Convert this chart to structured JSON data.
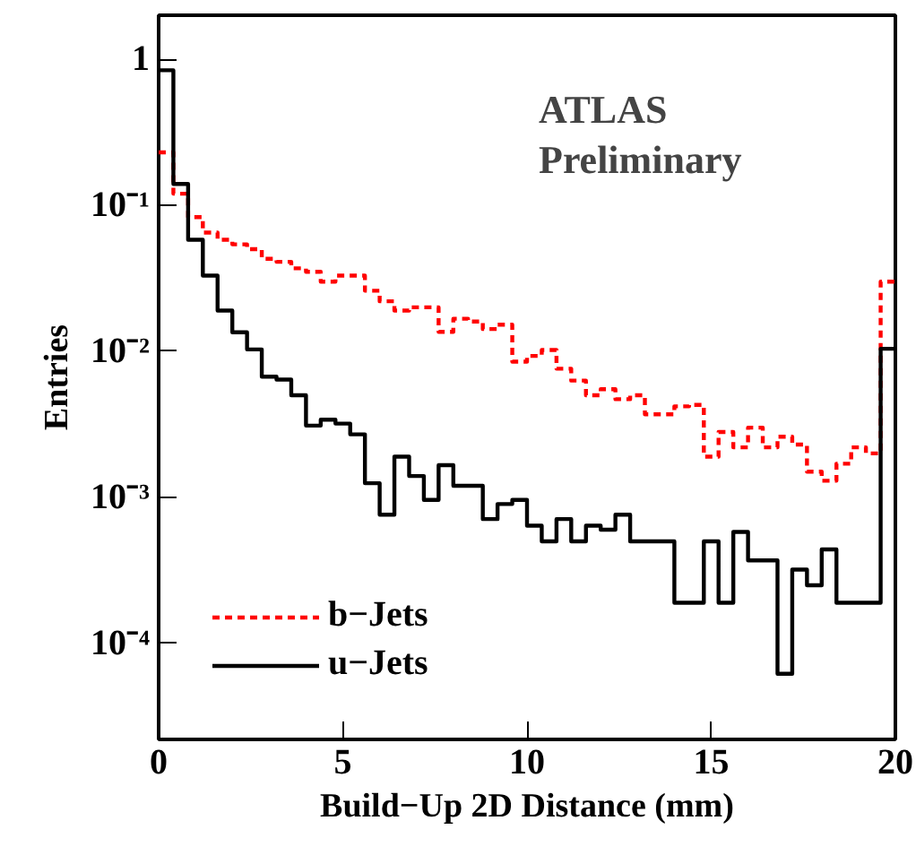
{
  "chart_data": {
    "type": "histogram",
    "xlabel": "Build−Up 2D Distance (mm)",
    "ylabel": "Entries",
    "annotations": [
      "ATLAS",
      "Preliminary"
    ],
    "bins": [
      0,
      0.4,
      0.8,
      1.2,
      1.6,
      2.0,
      2.4,
      2.8,
      3.2,
      3.6,
      4.0,
      4.4,
      4.8,
      5.2,
      5.6,
      6.0,
      6.4,
      6.8,
      7.2,
      7.6,
      8.0,
      8.4,
      8.8,
      9.2,
      9.6,
      10.0,
      10.4,
      10.8,
      11.2,
      11.6,
      12.0,
      12.4,
      12.8,
      13.2,
      13.6,
      14.0,
      14.4,
      14.8,
      15.2,
      15.6,
      16.0,
      16.4,
      16.8,
      17.2,
      17.6,
      18.0,
      18.4,
      18.8,
      19.2,
      19.6,
      20.0
    ],
    "series": [
      {
        "name": "b−Jets",
        "color": "#ff0000",
        "line_style": "dashed",
        "values": [
          0.23,
          0.12,
          0.083,
          0.065,
          0.058,
          0.054,
          0.05,
          0.043,
          0.041,
          0.037,
          0.035,
          0.03,
          0.033,
          0.033,
          0.026,
          0.022,
          0.019,
          0.02,
          0.02,
          0.0136,
          0.0167,
          0.016,
          0.0142,
          0.0152,
          0.0085,
          0.0093,
          0.0102,
          0.0076,
          0.0063,
          0.005,
          0.0055,
          0.0047,
          0.005,
          0.0037,
          0.0037,
          0.0042,
          0.0043,
          0.0019,
          0.0028,
          0.0022,
          0.003,
          0.0022,
          0.0026,
          0.0023,
          0.0015,
          0.0013,
          0.0017,
          0.0022,
          0.002,
          0.03
        ]
      },
      {
        "name": "u−Jets",
        "color": "#000000",
        "line_style": "solid",
        "values": [
          0.84,
          0.14,
          0.058,
          0.033,
          0.019,
          0.0135,
          0.0103,
          0.0067,
          0.0064,
          0.005,
          0.0031,
          0.0034,
          0.0032,
          0.0027,
          0.00125,
          0.00076,
          0.0019,
          0.0014,
          0.00096,
          0.00166,
          0.0012,
          0.0012,
          0.00071,
          0.0009,
          0.00096,
          0.00064,
          0.0005,
          0.00071,
          0.0005,
          0.00064,
          0.0006,
          0.00076,
          0.0005,
          0.0005,
          0.0005,
          0.00019,
          0.00019,
          0.0005,
          0.00019,
          0.00058,
          0.00037,
          0.00037,
          6.2e-05,
          0.00032,
          0.00025,
          0.00044,
          0.00019,
          0.00019,
          0.00019,
          0.0104
        ]
      }
    ],
    "log": "y",
    "xlim": [
      0,
      20
    ],
    "ylim": [
      2.2e-05,
      2
    ],
    "xticks": [
      0,
      5,
      10,
      15,
      20
    ],
    "yticks": [
      1,
      {
        "value": 0.1,
        "label": "10⁻¹"
      },
      {
        "value": 0.01,
        "label": "10⁻²"
      },
      {
        "value": 0.001,
        "label": "10⁻³"
      },
      {
        "value": 0.0001,
        "label": "10⁻⁴"
      }
    ],
    "grid": false,
    "legend": "bottom left"
  }
}
